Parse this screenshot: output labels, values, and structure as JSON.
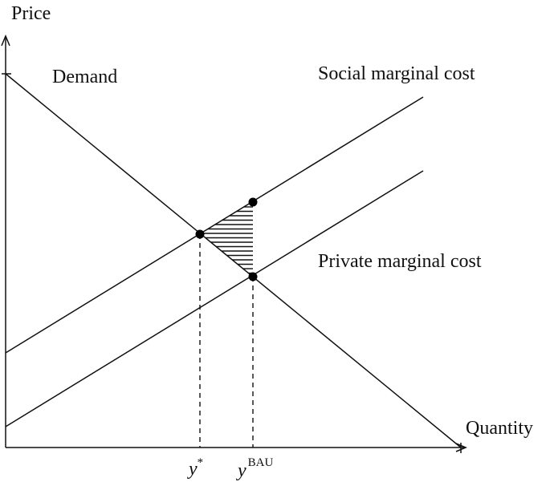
{
  "axes": {
    "y_label": "Price",
    "x_label": "Quantity"
  },
  "curves": {
    "demand_label": "Demand",
    "social_mc_label": "Social marginal cost",
    "private_mc_label": "Private marginal cost"
  },
  "ticks": {
    "y_star_base": "y",
    "y_star_sup": "*",
    "y_bau_base": "y",
    "y_bau_sup": "BAU"
  }
}
